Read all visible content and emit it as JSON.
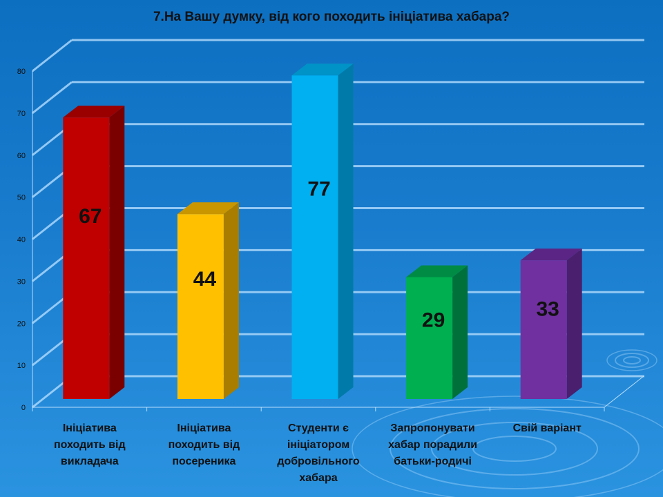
{
  "title": "7.На Вашу думку, від кого походить  ініціатива хабара?",
  "chart_data": {
    "type": "bar",
    "title": "7.На Вашу думку, від кого походить  ініціатива хабара?",
    "categories": [
      [
        "Ініціатива",
        "походить від",
        "викладача"
      ],
      [
        "Ініціатива",
        "походить від",
        "посереника"
      ],
      [
        "Студенти є",
        "ініціатором",
        "добровільного",
        "хабара"
      ],
      [
        "Запропонувати",
        "хабар порадили",
        "батьки-родичі"
      ],
      [
        "Свій варіант"
      ]
    ],
    "values": [
      67,
      44,
      77,
      29,
      33
    ],
    "data_labels": [
      "67",
      "44",
      "77",
      "29",
      "33"
    ],
    "ylim": [
      0,
      80
    ],
    "yticks": [
      "0",
      "10",
      "20",
      "30",
      "40",
      "50",
      "60",
      "70",
      "80"
    ],
    "grid": true,
    "bar_colors": [
      "#c00000",
      "#ffc000",
      "#00b0f0",
      "#00b050",
      "#7030a0"
    ],
    "bar_side_colors": [
      "#7a0000",
      "#a87d00",
      "#007aa8",
      "#00703a",
      "#4a1f6e"
    ],
    "bar_top_colors": [
      "#9a0000",
      "#c99600",
      "#0093c8",
      "#008b45",
      "#5a2584"
    ]
  }
}
